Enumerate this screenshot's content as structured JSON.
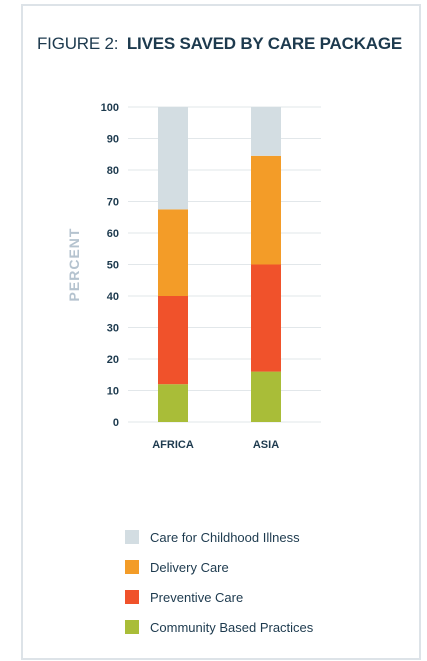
{
  "figure": {
    "prefix": "FIGURE 2:",
    "title": "LIVES SAVED BY CARE PACKAGE"
  },
  "chart_data": {
    "type": "bar",
    "stacked": true,
    "title": "LIVES SAVED BY CARE PACKAGE",
    "xlabel": "",
    "ylabel": "PERCENT",
    "ylim": [
      0,
      100
    ],
    "yticks": [
      0,
      10,
      20,
      30,
      40,
      50,
      60,
      70,
      80,
      90,
      100
    ],
    "categories": [
      "AFRICA",
      "ASIA"
    ],
    "grid": true,
    "legend_position": "bottom",
    "series": [
      {
        "name": "Community Based Practices",
        "color": "#a9bd38",
        "values": [
          12,
          16
        ]
      },
      {
        "name": "Preventive Care",
        "color": "#f0522b",
        "values": [
          28,
          34
        ]
      },
      {
        "name": "Delivery Care",
        "color": "#f39c28",
        "values": [
          27.5,
          34.5
        ]
      },
      {
        "name": "Care for Childhood Illness",
        "color": "#d3dde2",
        "values": [
          32.5,
          15.5
        ]
      }
    ],
    "legend_order": [
      "Care for Childhood Illness",
      "Delivery Care",
      "Preventive Care",
      "Community Based Practices"
    ]
  }
}
